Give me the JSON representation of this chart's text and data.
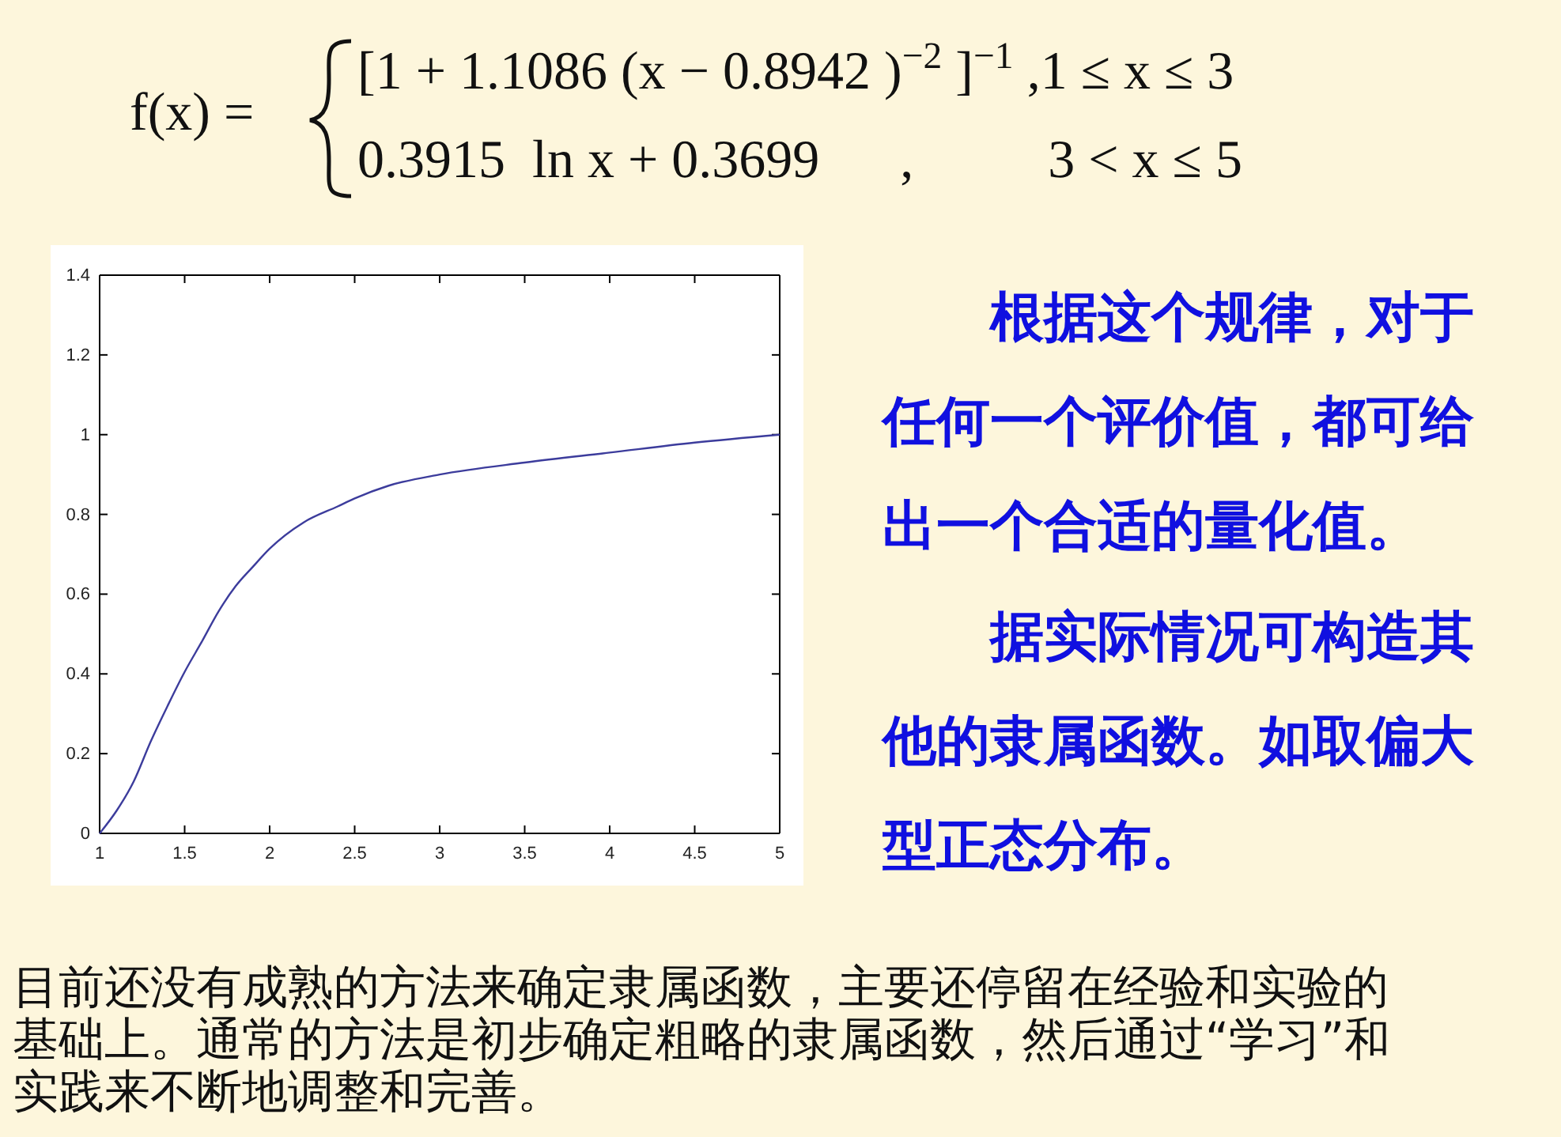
{
  "chart_data": {
    "type": "line",
    "x": [
      1,
      1.1,
      1.2,
      1.3,
      1.4,
      1.5,
      1.6,
      1.7,
      1.8,
      1.9,
      2,
      2.2,
      2.4,
      2.5,
      2.7,
      3,
      3.5,
      4,
      4.5,
      5
    ],
    "series": [
      {
        "color": "#3c3c9c",
        "values": [
          0,
          0.057,
          0.13,
          0.23,
          0.32,
          0.405,
          0.48,
          0.557,
          0.62,
          0.668,
          0.714,
          0.78,
          0.82,
          0.84,
          0.872,
          0.9,
          0.93,
          0.955,
          0.98,
          1.0
        ]
      }
    ],
    "xlim": [
      1,
      5
    ],
    "xticks": [
      1,
      1.5,
      2,
      2.5,
      3,
      3.5,
      4,
      4.5,
      5
    ],
    "ylim": [
      0,
      1.4
    ],
    "yticks": [
      0,
      0.2,
      0.4,
      0.6,
      0.8,
      1,
      1.2,
      1.4
    ],
    "grid": false,
    "marker": "none",
    "line_style": "solid",
    "annotations": [
      "f(x) =",
      "[1 + 1.1086 (x − 0.8942 )$^{−2}$ ]$^{−1}$ ,1 ≤ x ≤ 3",
      "0.3915  ln x + 0.3699      ,          3 < x ≤ 5",
      "根据这个规律，对于任何一个评价值，都可给出一个合适的量化值。",
      "据实际情况可构造其他的隶属函数。如取偏大型正态分布。",
      "目前还没有成熟的方法来确定隶属函数，主要还停留在经验和实验的基础上。通常的方法是初步确定粗略的隶属函数，然后通过“学习”和实践来不断地调整和完善。"
    ]
  }
}
